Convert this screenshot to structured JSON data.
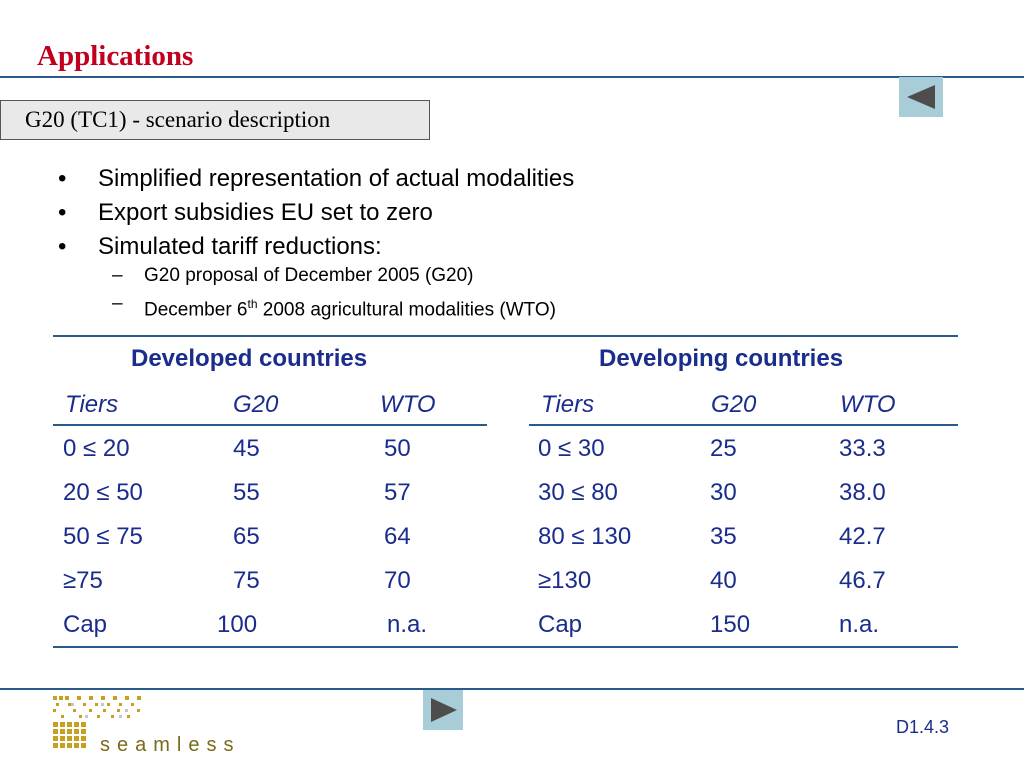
{
  "title": "Applications",
  "subtitle": "G20 (TC1)  - scenario description",
  "bullets": [
    "Simplified representation of actual modalities",
    "Export subsidies EU set to zero",
    "Simulated tariff reductions:"
  ],
  "sub_bullets": {
    "first": "G20 proposal of December 2005 (G20)",
    "second_pre": "December 6",
    "second_sup": "th",
    "second_post": " 2008 agricultural modalities (WTO)"
  },
  "table": {
    "developed": {
      "heading": "Developed countries",
      "columns": [
        "Tiers",
        "G20",
        "WTO"
      ],
      "rows": [
        [
          "0 ≤ 20",
          "45",
          "50"
        ],
        [
          "20 ≤ 50",
          "55",
          "57"
        ],
        [
          "50 ≤ 75",
          "65",
          "64"
        ],
        [
          "≥75",
          "75",
          "70"
        ],
        [
          "Cap",
          "100",
          "n.a."
        ]
      ]
    },
    "developing": {
      "heading": "Developing countries",
      "columns": [
        "Tiers",
        "G20",
        "WTO"
      ],
      "rows": [
        [
          "0 ≤ 30",
          "25",
          "33.3"
        ],
        [
          "30 ≤ 80",
          "30",
          "38.0"
        ],
        [
          "80 ≤ 130",
          "35",
          "42.7"
        ],
        [
          "≥130",
          "40",
          "46.7"
        ],
        [
          "Cap",
          "150",
          "n.a."
        ]
      ]
    }
  },
  "footer": {
    "logo_text": "seamless",
    "slide_id": "D1.4.3"
  },
  "colors": {
    "title": "#c0001c",
    "table_text": "#1a2c8c",
    "rule": "#2a5a8a",
    "nav_button": "#a9ccd9",
    "logo": "#c8a020"
  },
  "icons": {
    "back": "triangle-left-icon",
    "forward": "triangle-right-icon"
  }
}
